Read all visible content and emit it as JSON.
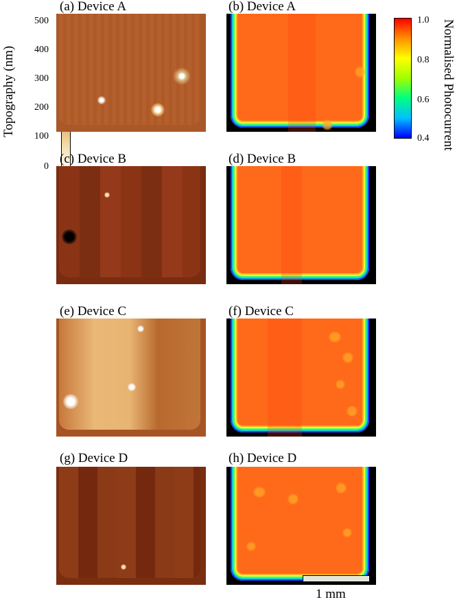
{
  "colorbar_left": {
    "title": "Topography (nm)",
    "ticks": [
      "500",
      "400",
      "300",
      "200",
      "100",
      "0"
    ]
  },
  "colorbar_right": {
    "title": "Normalised Photocurrent",
    "ticks": [
      "1.0",
      "0.8",
      "0.6",
      "0.4"
    ]
  },
  "panels": [
    {
      "label": "(a) Device A",
      "kind": "topography"
    },
    {
      "label": "(b) Device A",
      "kind": "photocurrent"
    },
    {
      "label": "(c) Device B",
      "kind": "topography"
    },
    {
      "label": "(d) Device B",
      "kind": "photocurrent"
    },
    {
      "label": "(e) Device C",
      "kind": "topography"
    },
    {
      "label": "(f) Device C",
      "kind": "photocurrent"
    },
    {
      "label": "(g) Device D",
      "kind": "topography"
    },
    {
      "label": "(h) Device D",
      "kind": "photocurrent"
    }
  ],
  "scalebar": {
    "label": "1 mm"
  },
  "colors": {
    "topo_a": "#b5602c",
    "topo_b": "#8a3415",
    "topo_c": "#e3a564",
    "topo_d": "#8a3a16",
    "photocurrent": "#ff6a1a"
  }
}
